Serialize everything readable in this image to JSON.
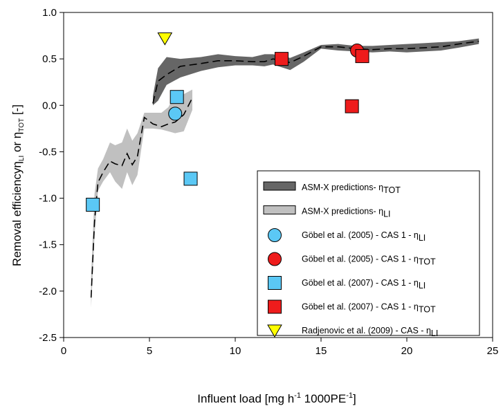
{
  "chart_data": {
    "type": "scatter",
    "xlabel": "Influent load [mg h",
    "xlabel_sup1": "-1",
    "xlabel_mid": " 1000PE",
    "xlabel_sup2": "-1",
    "xlabel_end": "]",
    "ylabel": "Removal efficiency",
    "ylabel_symbol1": "η",
    "ylabel_sub1": "LI",
    "ylabel_or": " or ",
    "ylabel_symbol2": "η",
    "ylabel_sub2": "TOT",
    "ylabel_end": " [-]",
    "xlim": [
      0,
      25
    ],
    "ylim": [
      -2.5,
      1.0
    ],
    "xticks": [
      0,
      5,
      10,
      15,
      20,
      25
    ],
    "yticks": [
      -2.5,
      -2.0,
      -1.5,
      -1.0,
      -0.5,
      0.0,
      0.5,
      1.0
    ],
    "xtick_labels": [
      "0",
      "5",
      "10",
      "15",
      "20",
      "25"
    ],
    "ytick_labels": [
      "-2.5",
      "-2.0",
      "-1.5",
      "-1.0",
      "-0.5",
      "0.0",
      "0.5",
      "1.0"
    ],
    "grid": false,
    "legend_placement": "bottom-right",
    "bands": [
      {
        "name": "ASM-X predictions- ",
        "symbol": "η",
        "sub": "TOT",
        "color": "#666666",
        "mean_x": [
          5.2,
          5.5,
          6.0,
          6.8,
          8.0,
          9.0,
          10.0,
          11.0,
          11.7,
          12.2,
          13.2,
          14.0,
          15.0,
          16.0,
          17.0,
          18.0,
          19.0,
          20.0,
          21.0,
          22.0,
          23.0,
          24.2
        ],
        "mean_y": [
          0.02,
          0.26,
          0.33,
          0.42,
          0.45,
          0.48,
          0.48,
          0.47,
          0.47,
          0.5,
          0.46,
          0.53,
          0.63,
          0.63,
          0.61,
          0.6,
          0.61,
          0.61,
          0.62,
          0.63,
          0.66,
          0.69
        ],
        "upper_y": [
          0.1,
          0.4,
          0.52,
          0.5,
          0.52,
          0.55,
          0.53,
          0.52,
          0.55,
          0.55,
          0.51,
          0.57,
          0.65,
          0.66,
          0.64,
          0.64,
          0.65,
          0.66,
          0.67,
          0.68,
          0.69,
          0.72
        ],
        "lower_y": [
          0.0,
          0.05,
          0.22,
          0.3,
          0.37,
          0.41,
          0.43,
          0.43,
          0.42,
          0.44,
          0.38,
          0.47,
          0.61,
          0.59,
          0.58,
          0.57,
          0.58,
          0.57,
          0.58,
          0.59,
          0.62,
          0.66
        ]
      },
      {
        "name": "ASM-X predictions- ",
        "symbol": "η",
        "sub": "LI",
        "color": "#c0c0c0",
        "mean_x": [
          1.6,
          1.8,
          2.0,
          2.3,
          2.7,
          3.0,
          3.4,
          3.7,
          4.0,
          4.3,
          4.7,
          5.2,
          5.7,
          6.1,
          6.5,
          7.0,
          7.5
        ],
        "mean_y": [
          -2.07,
          -1.25,
          -0.83,
          -0.72,
          -0.6,
          -0.63,
          -0.65,
          -0.52,
          -0.64,
          -0.55,
          -0.13,
          -0.2,
          -0.23,
          -0.2,
          -0.18,
          -0.1,
          0.08
        ],
        "upper_y": [
          -1.85,
          -0.95,
          -0.68,
          -0.58,
          -0.4,
          -0.43,
          -0.4,
          -0.25,
          -0.38,
          -0.3,
          -0.08,
          -0.08,
          -0.08,
          -0.02,
          0.12,
          0.12,
          0.17
        ],
        "lower_y": [
          -2.18,
          -1.4,
          -0.92,
          -0.82,
          -0.72,
          -0.82,
          -0.9,
          -0.72,
          -0.86,
          -0.75,
          -0.25,
          -0.25,
          -0.26,
          -0.28,
          -0.3,
          -0.28,
          -0.05
        ]
      }
    ],
    "series": [
      {
        "name": "Göbel et al. (2005) - CAS 1 - ",
        "symbol": "η",
        "sub": "LI",
        "marker": "circle",
        "color": "#5bc8f5",
        "x": [
          6.5
        ],
        "y": [
          -0.09
        ]
      },
      {
        "name": "Göbel et al. (2005) - CAS 1 - ",
        "symbol": "η",
        "sub": "TOT",
        "marker": "circle",
        "color": "#ee1c1c",
        "x": [
          17.1
        ],
        "y": [
          0.59
        ]
      },
      {
        "name": "Göbel et al. (2007) - CAS 1 - ",
        "symbol": "η",
        "sub": "LI",
        "marker": "square",
        "color": "#5bc8f5",
        "x": [
          1.7,
          6.6,
          7.4
        ],
        "y": [
          -1.07,
          0.09,
          -0.79
        ]
      },
      {
        "name": "Göbel et al. (2007) - CAS 1 - ",
        "symbol": "η",
        "sub": "TOT",
        "marker": "square",
        "color": "#ee1c1c",
        "x": [
          12.7,
          16.8,
          17.4
        ],
        "y": [
          0.5,
          -0.01,
          0.53
        ]
      },
      {
        "name": "Radjenovic et al. (2009) - CAS - ",
        "symbol": "η",
        "sub": "LI",
        "marker": "triangle-down",
        "color": "#ffff00",
        "x": [
          5.9
        ],
        "y": [
          0.72
        ]
      }
    ]
  }
}
